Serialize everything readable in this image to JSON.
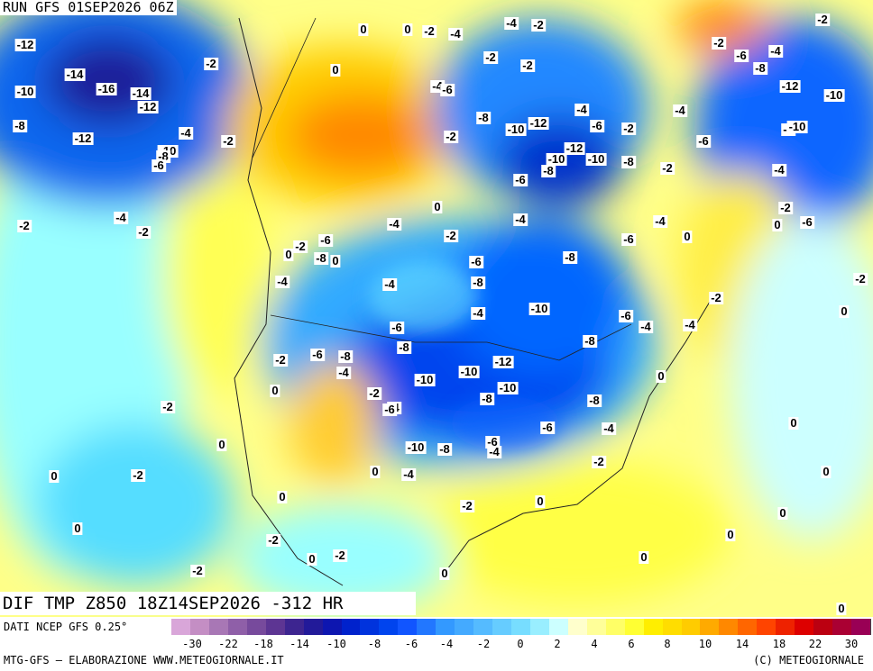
{
  "header": {
    "run": "RUN GFS 01SEP2026 06Z"
  },
  "footer": {
    "title": "DIF TMP Z850 18Z14SEP2026 -312 HR",
    "source": "DATI NCEP GFS 0.25°",
    "credit": "MTG-GFS — ELABORAZIONE WWW.METEOGIORNALE.IT",
    "copyright": "(C) METEOGIORNALE"
  },
  "colorbar": {
    "colors": [
      "#d9a6d9",
      "#c48ec4",
      "#a877b5",
      "#8f5fa8",
      "#774a9c",
      "#5d3593",
      "#3d2590",
      "#221a99",
      "#0d16b0",
      "#0022cc",
      "#0033dd",
      "#0044ee",
      "#1155ff",
      "#2277ff",
      "#3399ff",
      "#44aaff",
      "#55bbff",
      "#66ccff",
      "#77ddff",
      "#99eeff",
      "#ccffff",
      "#ffffcc",
      "#ffff99",
      "#ffff66",
      "#ffff33",
      "#ffee00",
      "#ffdd00",
      "#ffcc00",
      "#ffaa00",
      "#ff8800",
      "#ff6600",
      "#ff4400",
      "#ee2200",
      "#dd0000",
      "#bb0011",
      "#aa0033",
      "#990055"
    ],
    "ticks": [
      "-30",
      "-22",
      "-18",
      "-14",
      "-10",
      "-8",
      "-6",
      "-4",
      "-2",
      "0",
      "2",
      "4",
      "6",
      "8",
      "10",
      "14",
      "18",
      "22",
      "30"
    ]
  },
  "labels": [
    "0",
    "0",
    "-2",
    "-4",
    "-4",
    "-2",
    "-2",
    "-12",
    "-2",
    "-4",
    "-6",
    "-2",
    "-2",
    "0",
    "-2",
    "-8",
    "-14",
    "-16",
    "-14",
    "-12",
    "-10",
    "-4",
    "-6",
    "-12",
    "-10",
    "-8",
    "-12",
    "-10",
    "-4",
    "-6",
    "-2",
    "-4",
    "-8",
    "-12",
    "-4",
    "-2",
    "-2",
    "-8",
    "-10",
    "-6",
    "-10",
    "-8",
    "-6",
    "-12",
    "-10",
    "-10",
    "-8",
    "-8",
    "-2",
    "-4",
    "-6",
    "0",
    "-2",
    "-4",
    "-4",
    "-4",
    "-4",
    "0",
    "-6",
    "-2",
    "-2",
    "-2",
    "0",
    "-6",
    "-6",
    "-2",
    "0",
    "-8",
    "0",
    "-6",
    "-8",
    "-4",
    "-4",
    "-8",
    "-2",
    "-2",
    "-10",
    "-4",
    "0",
    "-6",
    "-4",
    "-4",
    "-6",
    "-8",
    "-8",
    "-6",
    "-8",
    "-2",
    "-12",
    "-4",
    "-10",
    "-10",
    "0",
    "-10",
    "0",
    "-2",
    "-8",
    "-8",
    "-4",
    "-2",
    "-6",
    "-6",
    "-4",
    "0",
    "-6",
    "-4",
    "-10",
    "-8",
    "0",
    "-2",
    "-4",
    "-2",
    "0",
    "0",
    "0",
    "0",
    "-2",
    "0",
    "0",
    "0",
    "-2",
    "0",
    "-2",
    "0",
    "0",
    "-2",
    "0",
    "0"
  ]
}
